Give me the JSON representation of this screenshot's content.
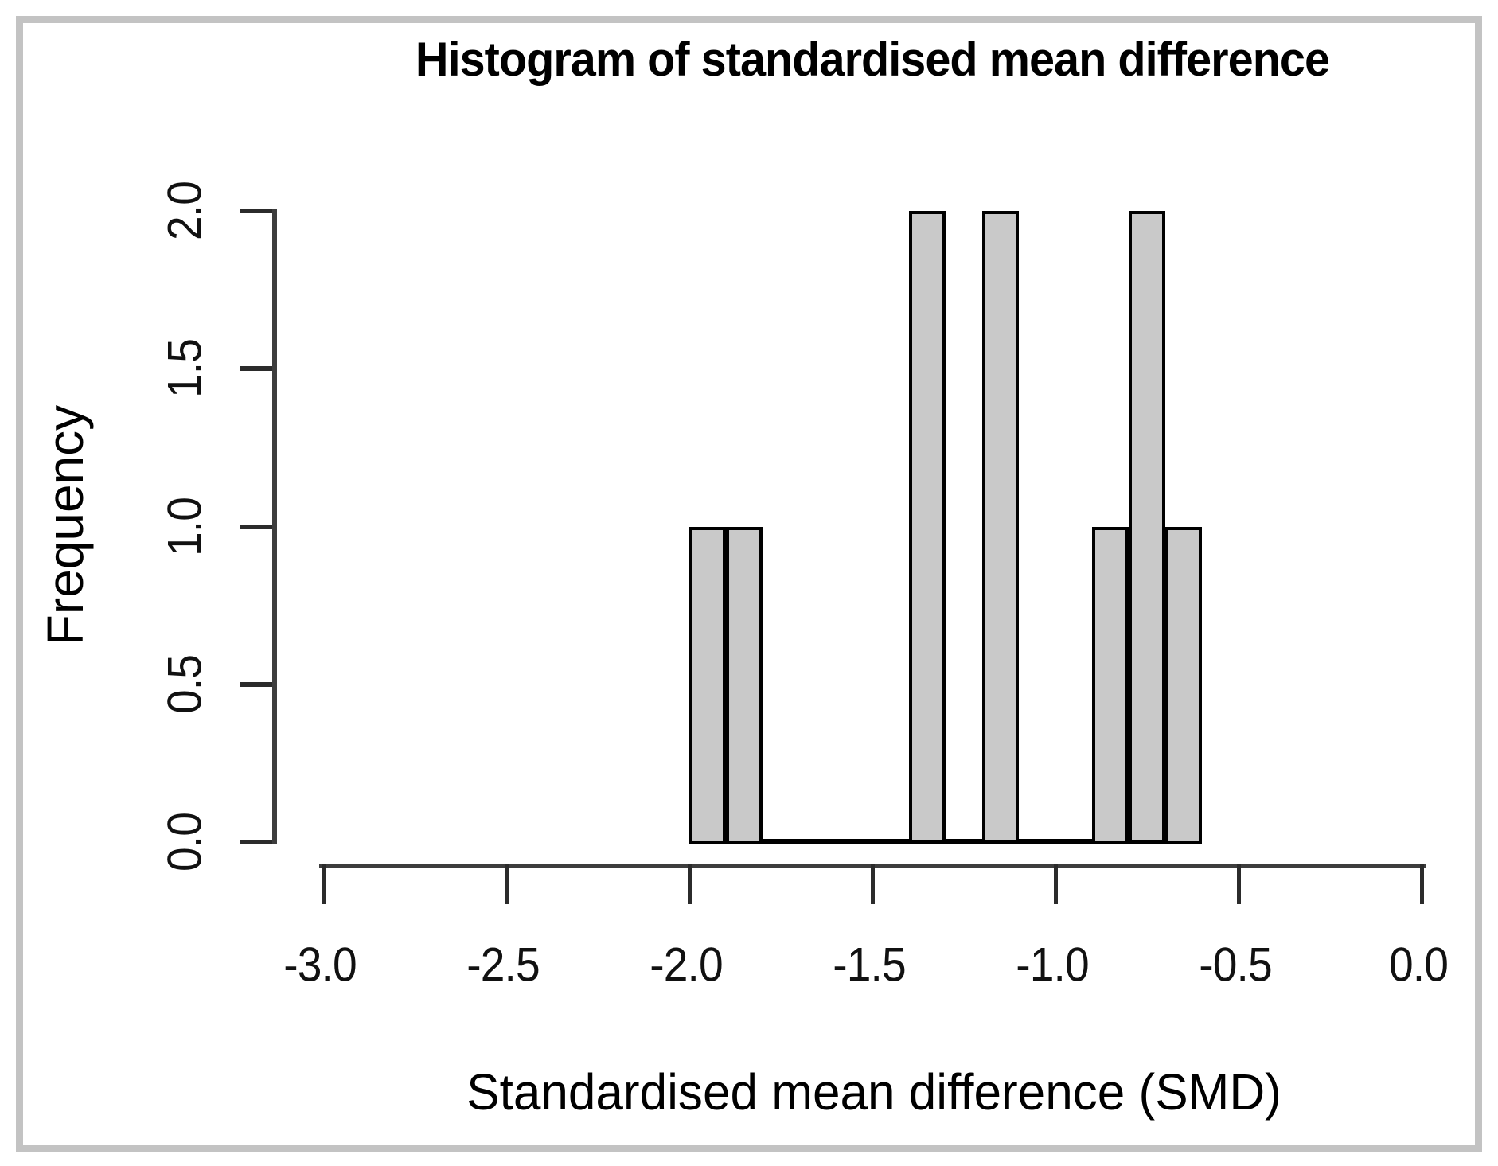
{
  "figure": {
    "background_color": "#ffffff",
    "border_color": "#c3c3c3",
    "bar_fill_color": "#c9c9c9",
    "bar_border_color": "#000000",
    "axis_color": "#3d3d3d"
  },
  "chart_data": {
    "type": "bar",
    "subtype": "histogram",
    "title": "Histogram of standardised mean difference",
    "xlabel": "Standardised mean difference (SMD)",
    "ylabel": "Frequency",
    "xlim": [
      -3.0,
      0.0
    ],
    "ylim": [
      0.0,
      2.0
    ],
    "grid": false,
    "legend": "none",
    "x_ticks": [
      -3.0,
      -2.5,
      -2.0,
      -1.5,
      -1.0,
      -0.5,
      0.0
    ],
    "x_tick_labels": [
      "-3.0",
      "-2.5",
      "-2.0",
      "-1.5",
      "-1.0",
      "-0.5",
      "0.0"
    ],
    "y_ticks": [
      0.0,
      0.5,
      1.0,
      1.5,
      2.0
    ],
    "y_tick_labels": [
      "0.0",
      "0.5",
      "1.0",
      "1.5",
      "2.0"
    ],
    "bin_width": 0.1,
    "bins": [
      {
        "x0": -2.0,
        "x1": -1.9,
        "count": 1
      },
      {
        "x0": -1.9,
        "x1": -1.8,
        "count": 1
      },
      {
        "x0": -1.8,
        "x1": -1.7,
        "count": 0
      },
      {
        "x0": -1.7,
        "x1": -1.6,
        "count": 0
      },
      {
        "x0": -1.6,
        "x1": -1.5,
        "count": 0
      },
      {
        "x0": -1.5,
        "x1": -1.4,
        "count": 0
      },
      {
        "x0": -1.4,
        "x1": -1.3,
        "count": 2
      },
      {
        "x0": -1.3,
        "x1": -1.2,
        "count": 0
      },
      {
        "x0": -1.2,
        "x1": -1.1,
        "count": 2
      },
      {
        "x0": -1.1,
        "x1": -1.0,
        "count": 0
      },
      {
        "x0": -1.0,
        "x1": -0.9,
        "count": 0
      },
      {
        "x0": -0.9,
        "x1": -0.8,
        "count": 1
      },
      {
        "x0": -0.8,
        "x1": -0.7,
        "count": 2
      },
      {
        "x0": -0.7,
        "x1": -0.6,
        "count": 1
      }
    ]
  }
}
